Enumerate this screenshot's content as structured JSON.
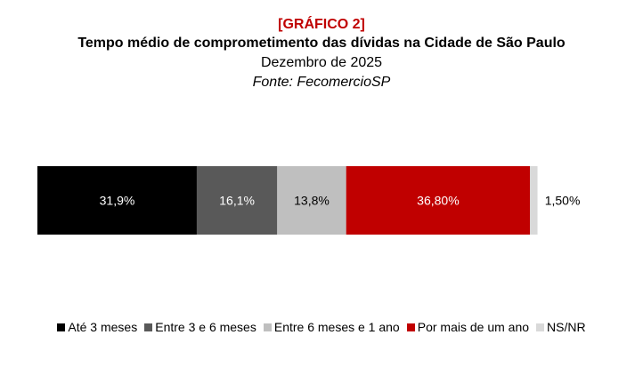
{
  "header": {
    "tag": "[GRÁFICO 2]",
    "title": "Tempo médio de comprometimento das dívidas na Cidade de São Paulo",
    "subtitle": "Dezembro de 2025",
    "source": "Fonte: FecomercioSP"
  },
  "chart_data": {
    "type": "bar",
    "orientation": "horizontal-stacked-100%",
    "categories": [
      ""
    ],
    "series": [
      {
        "name": "Até 3 meses",
        "values": [
          31.9
        ],
        "label": "31,9%",
        "color": "#000000",
        "label_color": "#ffffff"
      },
      {
        "name": "Entre 3 e 6 meses",
        "values": [
          16.1
        ],
        "label": "16,1%",
        "color": "#595959",
        "label_color": "#ffffff"
      },
      {
        "name": "Entre 6 meses e 1 ano",
        "values": [
          13.8
        ],
        "label": "13,8%",
        "color": "#bfbfbf",
        "label_color": "#000000"
      },
      {
        "name": "Por mais de um ano",
        "values": [
          36.8
        ],
        "label": "36,80%",
        "color": "#c00000",
        "label_color": "#ffffff"
      },
      {
        "name": "NS/NR",
        "values": [
          1.5
        ],
        "label": "1,50%",
        "color": "#d9d9d9",
        "label_color": "#000000"
      }
    ],
    "xlim": [
      0,
      100
    ],
    "grid": false,
    "legend_position": "bottom"
  }
}
